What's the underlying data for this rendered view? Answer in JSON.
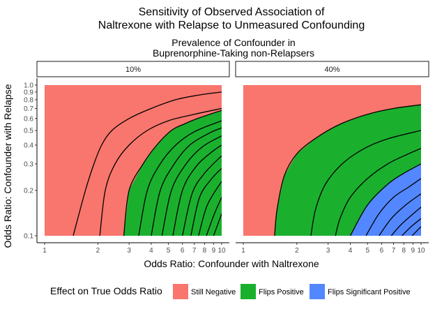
{
  "chart_data": {
    "type": "heatmap",
    "title_lines": [
      "Sensitivity of Observed Association of",
      "Naltrexone with Relapse to Unmeasured Confounding"
    ],
    "facet_title_lines": [
      "Prevalence of Confounder in",
      "Buprenorphine-Taking non-Relapsers"
    ],
    "facets": [
      {
        "label": "10%",
        "prevalence": 0.1,
        "green_boundary": [
          [
            2.8,
            0.1
          ],
          [
            3.0,
            0.2
          ],
          [
            3.6,
            0.3
          ],
          [
            4.3,
            0.4
          ],
          [
            5.2,
            0.5
          ],
          [
            6.1,
            0.55
          ],
          [
            7.3,
            0.6
          ],
          [
            10,
            0.68
          ]
        ],
        "blue_boundary": [],
        "contours": [
          [
            [
              1.45,
              0.1
            ],
            [
              1.7,
              0.2
            ],
            [
              1.9,
              0.3
            ],
            [
              2.1,
              0.4
            ],
            [
              2.4,
              0.5
            ],
            [
              3.0,
              0.6
            ],
            [
              4.0,
              0.7
            ],
            [
              5.5,
              0.8
            ],
            [
              7.5,
              0.86
            ],
            [
              10,
              0.9
            ]
          ],
          [
            [
              2.05,
              0.1
            ],
            [
              2.2,
              0.2
            ],
            [
              2.5,
              0.3
            ],
            [
              3.0,
              0.4
            ],
            [
              3.8,
              0.5
            ],
            [
              5.0,
              0.58
            ],
            [
              7.0,
              0.64
            ],
            [
              10,
              0.7
            ]
          ],
          [
            [
              2.8,
              0.1
            ],
            [
              3.0,
              0.2
            ],
            [
              3.6,
              0.3
            ],
            [
              4.3,
              0.4
            ],
            [
              5.2,
              0.5
            ],
            [
              6.1,
              0.55
            ],
            [
              7.3,
              0.6
            ],
            [
              10,
              0.68
            ]
          ],
          [
            [
              3.4,
              0.1
            ],
            [
              3.8,
              0.2
            ],
            [
              4.5,
              0.3
            ],
            [
              5.5,
              0.4
            ],
            [
              7.0,
              0.49
            ],
            [
              10,
              0.58
            ]
          ],
          [
            [
              4.0,
              0.1
            ],
            [
              4.5,
              0.2
            ],
            [
              5.4,
              0.3
            ],
            [
              6.6,
              0.4
            ],
            [
              8.5,
              0.48
            ],
            [
              10,
              0.52
            ]
          ],
          [
            [
              4.6,
              0.1
            ],
            [
              5.2,
              0.2
            ],
            [
              6.3,
              0.3
            ],
            [
              7.8,
              0.39
            ],
            [
              10,
              0.46
            ]
          ],
          [
            [
              5.3,
              0.1
            ],
            [
              6.0,
              0.2
            ],
            [
              7.2,
              0.29
            ],
            [
              8.8,
              0.36
            ],
            [
              10,
              0.4
            ]
          ],
          [
            [
              6.0,
              0.1
            ],
            [
              6.8,
              0.19
            ],
            [
              8.0,
              0.26
            ],
            [
              10,
              0.34
            ]
          ],
          [
            [
              6.7,
              0.1
            ],
            [
              7.5,
              0.18
            ],
            [
              8.8,
              0.24
            ],
            [
              10,
              0.28
            ]
          ],
          [
            [
              7.4,
              0.1
            ],
            [
              8.3,
              0.16
            ],
            [
              10,
              0.23
            ]
          ],
          [
            [
              8.2,
              0.1
            ],
            [
              9.1,
              0.14
            ],
            [
              10,
              0.18
            ]
          ],
          [
            [
              9.0,
              0.1
            ],
            [
              10,
              0.14
            ]
          ]
        ]
      },
      {
        "label": "40%",
        "prevalence": 0.4,
        "green_boundary": [
          [
            1.5,
            0.1
          ],
          [
            1.55,
            0.15
          ],
          [
            1.7,
            0.25
          ],
          [
            2.0,
            0.35
          ],
          [
            2.6,
            0.45
          ],
          [
            3.5,
            0.55
          ],
          [
            5.0,
            0.64
          ],
          [
            7.0,
            0.7
          ],
          [
            10,
            0.74
          ]
        ],
        "blue_boundary": [
          [
            4.0,
            0.1
          ],
          [
            5.0,
            0.16
          ],
          [
            6.5,
            0.22
          ],
          [
            8.0,
            0.26
          ],
          [
            10,
            0.3
          ]
        ],
        "contours": [
          [
            [
              1.5,
              0.1
            ],
            [
              1.55,
              0.15
            ],
            [
              1.7,
              0.25
            ],
            [
              2.0,
              0.35
            ],
            [
              2.6,
              0.45
            ],
            [
              3.5,
              0.55
            ],
            [
              5.0,
              0.64
            ],
            [
              7.0,
              0.7
            ],
            [
              10,
              0.74
            ]
          ],
          [
            [
              2.4,
              0.1
            ],
            [
              2.55,
              0.15
            ],
            [
              2.9,
              0.22
            ],
            [
              3.6,
              0.3
            ],
            [
              4.8,
              0.38
            ],
            [
              6.5,
              0.44
            ],
            [
              10,
              0.5
            ]
          ],
          [
            [
              3.3,
              0.1
            ],
            [
              3.5,
              0.13
            ],
            [
              4.0,
              0.18
            ],
            [
              5.0,
              0.24
            ],
            [
              6.5,
              0.3
            ],
            [
              8.5,
              0.35
            ],
            [
              10,
              0.38
            ]
          ],
          [
            [
              4.0,
              0.1
            ],
            [
              5.0,
              0.16
            ],
            [
              6.5,
              0.22
            ],
            [
              8.0,
              0.26
            ],
            [
              10,
              0.3
            ]
          ],
          [
            [
              4.9,
              0.1
            ],
            [
              5.8,
              0.14
            ],
            [
              7.0,
              0.18
            ],
            [
              8.5,
              0.21
            ],
            [
              10,
              0.24
            ]
          ],
          [
            [
              5.8,
              0.1
            ],
            [
              6.8,
              0.13
            ],
            [
              8.2,
              0.16
            ],
            [
              10,
              0.19
            ]
          ],
          [
            [
              6.8,
              0.1
            ],
            [
              7.8,
              0.12
            ],
            [
              10,
              0.155
            ]
          ],
          [
            [
              7.8,
              0.1
            ],
            [
              8.8,
              0.115
            ],
            [
              10,
              0.13
            ]
          ],
          [
            [
              8.9,
              0.1
            ],
            [
              10,
              0.115
            ]
          ]
        ]
      }
    ],
    "x_axis": {
      "title": "Odds Ratio: Confounder with Naltrexone",
      "scale": "log",
      "range": [
        1,
        10
      ],
      "ticks": [
        1,
        2,
        3,
        4,
        5,
        6,
        7,
        8,
        9,
        10
      ],
      "tick_labels": [
        "1",
        "2",
        "3",
        "4",
        "5",
        "6",
        "7",
        "8",
        "9",
        "10"
      ]
    },
    "y_axis": {
      "title": "Odds Ratio: Confounder with Relapse",
      "scale": "log",
      "range": [
        0.1,
        1.0
      ],
      "ticks": [
        0.1,
        0.2,
        0.3,
        0.4,
        0.5,
        0.6,
        0.7,
        0.8,
        0.9,
        1.0
      ],
      "tick_labels": [
        "0.1",
        "0.2",
        "0.3",
        "0.4",
        "0.5",
        "0.6",
        "0.7",
        "0.8",
        "0.9",
        "1.0"
      ]
    },
    "legend": {
      "title": "Effect on True Odds Ratio",
      "placement": "bottom",
      "items": [
        {
          "label": "Still Negative",
          "color": "#F8766D"
        },
        {
          "label": "Flips Positive",
          "color": "#1AB02E"
        },
        {
          "label": "Flips Significant Positive",
          "color": "#5387FF"
        }
      ]
    },
    "colors": {
      "still_negative": "#F8766D",
      "flips_positive": "#1AB02E",
      "flips_significant_positive": "#5387FF",
      "contour": "#000000"
    }
  }
}
